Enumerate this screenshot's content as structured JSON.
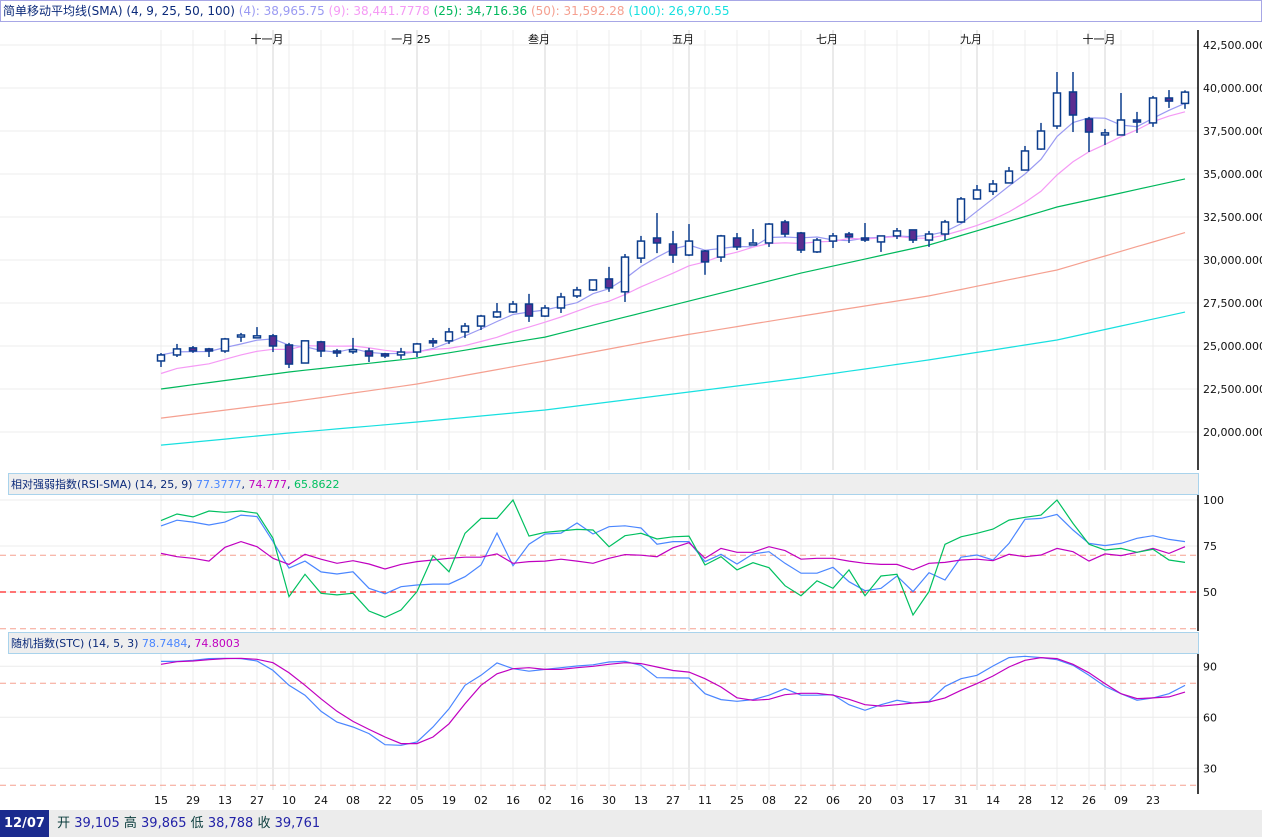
{
  "legend": {
    "title": "简单移动平均线(SMA) (4, 9, 25, 50, 100)",
    "items": [
      {
        "label": "(4): 38,965.75",
        "color": "#9a9af2"
      },
      {
        "label": "(9): 38,441.7778",
        "color": "#f59af5"
      },
      {
        "label": "(25): 34,716.36",
        "color": "#00b85c"
      },
      {
        "label": "(50): 31,592.28",
        "color": "#f5a090"
      },
      {
        "label": "(100): 26,970.55",
        "color": "#18e0e0"
      }
    ]
  },
  "rsi_legend": {
    "title": "相对强弱指数(RSI-SMA) (14, 25, 9)",
    "items": [
      {
        "label": "77.3777",
        "color": "#4a86ff"
      },
      {
        "label": "74.777",
        "color": "#c000c0"
      },
      {
        "label": "65.8622",
        "color": "#00c060"
      }
    ]
  },
  "stc_legend": {
    "title": "随机指数(STC) (14, 5, 3)",
    "items": [
      {
        "label": "78.7484",
        "color": "#4a86ff"
      },
      {
        "label": "74.8003",
        "color": "#c000c0"
      }
    ]
  },
  "footer": {
    "date": "12/07",
    "open_label": "开",
    "open": "39,105",
    "high_label": "高",
    "high": "39,865",
    "low_label": "低",
    "low": "38,788",
    "close_label": "收",
    "close": "39,761"
  },
  "chart_data": [
    {
      "type": "candlestick",
      "title": "简单移动平均线(SMA) (4, 9, 25, 50, 100)",
      "ylim": [
        18000,
        43000
      ],
      "y_ticks": [
        "42,500.0000",
        "40,000.0000",
        "37,500.0000",
        "35,000.0000",
        "32,500.0000",
        "30,000.0000",
        "27,500.0000",
        "25,000.0000",
        "22,500.0000",
        "20,000.0000"
      ],
      "y_tick_values": [
        42500,
        40000,
        37500,
        35000,
        32500,
        30000,
        27500,
        25000,
        22500,
        20000
      ],
      "month_labels": [
        {
          "label": "十一月",
          "index": 7
        },
        {
          "label": "一月 25",
          "index": 16
        },
        {
          "label": "叁月",
          "index": 24
        },
        {
          "label": "五月",
          "index": 33
        },
        {
          "label": "七月",
          "index": 42
        },
        {
          "label": "九月",
          "index": 51
        },
        {
          "label": "十一月",
          "index": 59
        }
      ],
      "x_tick_labels": [
        "15",
        "29",
        "13",
        "27",
        "10",
        "24",
        "08",
        "22",
        "05",
        "19",
        "02",
        "16",
        "02",
        "16",
        "30",
        "13",
        "27",
        "11",
        "25",
        "08",
        "22",
        "06",
        "20",
        "03",
        "17",
        "31",
        "14",
        "28",
        "12",
        "26",
        "09",
        "23"
      ],
      "ohlc": [
        [
          24130,
          24590,
          23780,
          24480
        ],
        [
          24480,
          25120,
          24360,
          24830
        ],
        [
          24890,
          25000,
          24600,
          24710
        ],
        [
          24830,
          24890,
          24360,
          24710
        ],
        [
          24710,
          25470,
          24600,
          25410
        ],
        [
          25530,
          25760,
          25240,
          25640
        ],
        [
          25580,
          26100,
          25530,
          25590
        ],
        [
          25590,
          25700,
          24650,
          25000
        ],
        [
          25060,
          25180,
          23720,
          23950
        ],
        [
          24010,
          25300,
          24010,
          25300
        ],
        [
          25240,
          25300,
          24360,
          24710
        ],
        [
          24710,
          24830,
          24360,
          24600
        ],
        [
          24770,
          25470,
          24540,
          24780
        ],
        [
          24710,
          24890,
          24070,
          24420
        ],
        [
          24540,
          24600,
          24300,
          24420
        ],
        [
          24480,
          24890,
          24250,
          24650
        ],
        [
          24650,
          25180,
          24360,
          25120
        ],
        [
          25300,
          25470,
          24940,
          25240
        ],
        [
          25300,
          26050,
          25120,
          25820
        ],
        [
          25820,
          26340,
          25470,
          26160
        ],
        [
          26160,
          26810,
          25930,
          26740
        ],
        [
          26690,
          27500,
          26630,
          26980
        ],
        [
          26980,
          27620,
          26920,
          27440
        ],
        [
          27440,
          28030,
          26400,
          26740
        ],
        [
          26740,
          27380,
          26690,
          27210
        ],
        [
          27210,
          28090,
          26920,
          27850
        ],
        [
          27910,
          28440,
          27790,
          28260
        ],
        [
          28260,
          28840,
          28200,
          28840
        ],
        [
          28900,
          29600,
          28150,
          28380
        ],
        [
          28150,
          30350,
          27560,
          30170
        ],
        [
          30110,
          31400,
          29830,
          31100
        ],
        [
          31280,
          32730,
          30400,
          30990
        ],
        [
          30930,
          31690,
          29830,
          30290
        ],
        [
          30290,
          32090,
          30230,
          31100
        ],
        [
          30520,
          30580,
          29140,
          29890
        ],
        [
          30170,
          31460,
          29890,
          31400
        ],
        [
          31280,
          31570,
          30580,
          30760
        ],
        [
          30930,
          31800,
          30870,
          30990
        ],
        [
          30990,
          32150,
          30760,
          32090
        ],
        [
          32210,
          32330,
          31340,
          31510
        ],
        [
          31570,
          31630,
          30410,
          30580
        ],
        [
          30470,
          31280,
          30410,
          31160
        ],
        [
          31100,
          31570,
          30700,
          31400
        ],
        [
          31510,
          31630,
          30990,
          31340
        ],
        [
          31280,
          32150,
          31050,
          31160
        ],
        [
          31050,
          31400,
          30470,
          31400
        ],
        [
          31400,
          31860,
          31220,
          31690
        ],
        [
          31750,
          31750,
          30990,
          31160
        ],
        [
          31160,
          31690,
          30760,
          31510
        ],
        [
          31510,
          32330,
          31160,
          32210
        ],
        [
          32210,
          33660,
          32150,
          33550
        ],
        [
          33550,
          34360,
          33500,
          34070
        ],
        [
          33990,
          34650,
          33780,
          34420
        ],
        [
          34480,
          35410,
          34480,
          35170
        ],
        [
          35230,
          36630,
          35230,
          36340
        ],
        [
          36450,
          37970,
          36400,
          37500
        ],
        [
          37790,
          40930,
          37620,
          39710
        ],
        [
          39770,
          40930,
          37440,
          38430
        ],
        [
          38200,
          38320,
          36280,
          37440
        ],
        [
          37270,
          37620,
          36690,
          37390
        ],
        [
          37270,
          39710,
          37270,
          38140
        ],
        [
          38140,
          38610,
          37390,
          38020
        ],
        [
          37970,
          39540,
          37740,
          39420
        ],
        [
          39420,
          39880,
          38840,
          39240
        ],
        [
          39105,
          39865,
          38788,
          39761
        ]
      ],
      "ma_series": [
        {
          "name": "(4)",
          "color": "#9a9af2",
          "period": 4
        },
        {
          "name": "(9)",
          "color": "#f59af5",
          "period": 9
        },
        {
          "name": "(25)",
          "color": "#00b85c",
          "sample_every": 8,
          "values": [
            22500,
            23490,
            24300,
            25520,
            27380,
            29240,
            30870,
            33080,
            34716
          ]
        },
        {
          "name": "(50)",
          "color": "#f5a090",
          "sample_every": 8,
          "values": [
            20810,
            21740,
            22790,
            24130,
            25520,
            26740,
            27910,
            29420,
            31592
          ]
        },
        {
          "name": "(100)",
          "color": "#18e0e0",
          "sample_every": 8,
          "values": [
            19240,
            19940,
            20580,
            21280,
            22210,
            23140,
            24190,
            25350,
            26970
          ]
        }
      ]
    },
    {
      "type": "line",
      "title": "相对强弱指数(RSI-SMA) (14, 25, 9)",
      "ylim": [
        30,
        100
      ],
      "y_ticks": [
        "100",
        "75",
        "50"
      ],
      "y_tick_values": [
        100,
        75,
        50
      ],
      "reference_lines": [
        {
          "value": 70,
          "color": "#f5a090"
        },
        {
          "value": 50,
          "color": "#ff2020"
        },
        {
          "value": 30,
          "color": "#f5a090"
        }
      ],
      "series": [
        {
          "color": "#4a86ff",
          "values": [
            85.9,
            89,
            88,
            86.4,
            88,
            91.8,
            91,
            77.4,
            63,
            66.8,
            60.9,
            59.8,
            61,
            52,
            49,
            52.9,
            53.8,
            54.3,
            54.3,
            58.3,
            64.7,
            82,
            64.3,
            76,
            81.5,
            82,
            87.5,
            81.5,
            85.5,
            86,
            84.8,
            76,
            77.4,
            77.4,
            66.5,
            70.5,
            65.2,
            70.7,
            71.9,
            65.6,
            60.2,
            60.2,
            63.4,
            55.6,
            50.7,
            52,
            58.7,
            50.2,
            60.5,
            56.5,
            68.9,
            70.1,
            67.4,
            76.4,
            89.5,
            90,
            92.2,
            83.7,
            76.4,
            75.2,
            76.4,
            79.2,
            80.6,
            78.6,
            77.4
          ]
        },
        {
          "color": "#c000c0",
          "values": [
            71,
            69.2,
            68.3,
            66.8,
            74.3,
            77.4,
            74.6,
            68.3,
            65,
            70.5,
            67.8,
            65.6,
            67,
            65.2,
            62.5,
            65,
            66.5,
            67.4,
            68.3,
            68.9,
            68.9,
            70.7,
            65.6,
            66.5,
            66.8,
            67.8,
            66.8,
            65.6,
            68.3,
            70.3,
            70,
            69.2,
            74,
            76.8,
            68.3,
            73.7,
            71.6,
            71.6,
            74.6,
            72.5,
            67.8,
            68.3,
            68.3,
            66.8,
            65.6,
            65,
            65,
            62,
            65.6,
            66.1,
            67.4,
            67.8,
            67,
            70.5,
            69.2,
            70.1,
            73.7,
            71.9,
            66.8,
            70.7,
            69.8,
            71.6,
            73.7,
            71,
            74.6
          ]
        },
        {
          "color": "#00c060",
          "values": [
            88.8,
            92.4,
            90.8,
            94,
            93.3,
            94,
            92.8,
            79.2,
            47.5,
            59.6,
            49.3,
            48.4,
            49.3,
            39.7,
            36.2,
            40.2,
            50.2,
            69.7,
            61,
            81.9,
            90,
            90,
            100,
            80.4,
            82.4,
            83.2,
            84,
            83.7,
            74.6,
            80.6,
            81.9,
            78.8,
            80,
            80.4,
            64.7,
            69.2,
            62,
            65.9,
            63.2,
            53.4,
            48,
            56.1,
            52,
            62,
            48,
            58.7,
            59.6,
            37.5,
            50.2,
            75.9,
            80,
            81.9,
            84.2,
            89.1,
            90.6,
            91.8,
            100,
            87.3,
            75.9,
            72.8,
            73.7,
            71.6,
            73.2,
            67.4,
            66.1
          ]
        }
      ]
    },
    {
      "type": "line",
      "title": "随机指数(STC) (14, 5, 3)",
      "ylim": [
        18,
        100
      ],
      "y_ticks": [
        "90",
        "60",
        "30"
      ],
      "y_tick_values": [
        90,
        60,
        30
      ],
      "reference_lines": [
        {
          "value": 80,
          "color": "#f5a090"
        },
        {
          "value": 20,
          "color": "#f5a090"
        }
      ],
      "series": [
        {
          "color": "#4a86ff",
          "values": [
            92.9,
            92.9,
            93.5,
            94.5,
            94.7,
            94.5,
            93.1,
            87.6,
            78.8,
            73,
            63.5,
            57.2,
            54.3,
            50.4,
            43.9,
            43.5,
            45.5,
            54.3,
            65,
            78.8,
            84.7,
            92,
            88.6,
            87.1,
            88.2,
            89.2,
            90.2,
            90.9,
            92.5,
            92.9,
            90.6,
            83.3,
            83.2,
            83.1,
            73.9,
            70.4,
            69.4,
            70.4,
            73,
            76.8,
            73,
            73,
            73.3,
            67.4,
            64.1,
            67.4,
            70,
            68.4,
            69.4,
            78.2,
            82.7,
            84.7,
            90.2,
            95.1,
            95.9,
            95.1,
            93.9,
            90.6,
            84.7,
            78.2,
            73.9,
            70,
            71.4,
            73.9,
            78.75
          ]
        },
        {
          "color": "#c000c0",
          "values": [
            91.2,
            92.7,
            93.1,
            93.9,
            94.5,
            94.7,
            94.1,
            92.1,
            86.2,
            78.8,
            70.9,
            63.5,
            57.6,
            52.9,
            48.4,
            44.5,
            44.5,
            48.4,
            56.2,
            68,
            78.8,
            85.6,
            88.6,
            89.2,
            88.2,
            88.2,
            89.2,
            90,
            91.2,
            92.1,
            91.6,
            89.6,
            87.5,
            86.6,
            82.7,
            77.8,
            71.5,
            70,
            70.6,
            73.3,
            74.1,
            74.1,
            73,
            70.6,
            67.4,
            66.6,
            67.4,
            68.4,
            69,
            71.4,
            75.9,
            79.8,
            84.3,
            89.6,
            93.5,
            95.1,
            94.5,
            91.2,
            86.2,
            79.8,
            73.9,
            71,
            71.4,
            72,
            74.8
          ]
        }
      ]
    }
  ]
}
